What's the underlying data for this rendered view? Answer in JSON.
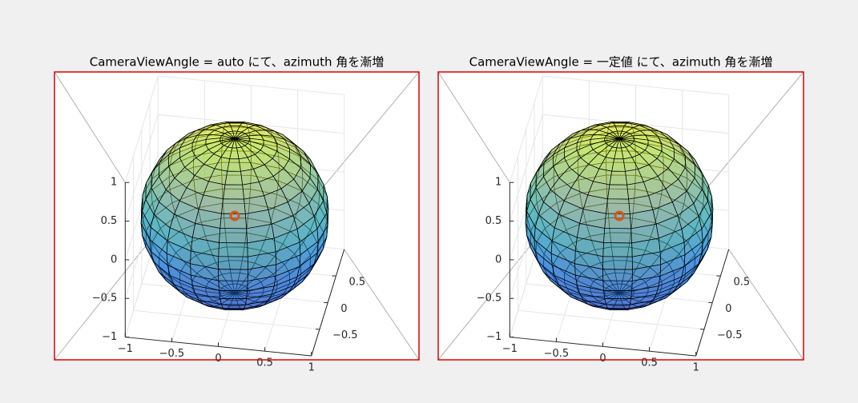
{
  "chart_data": [
    {
      "type": "surface3d",
      "title": "CameraViewAngle = auto にて、azimuth 角を漸増",
      "xlim": [
        -1,
        1
      ],
      "ylim": [
        -1,
        1
      ],
      "zlim": [
        -1,
        1
      ],
      "xticks": [
        {
          "value": -1,
          "label": "−1"
        },
        {
          "value": -0.5,
          "label": "−0.5"
        },
        0,
        0.5,
        1
      ],
      "yticks": [
        {
          "value": -0.5,
          "label": "−0.5"
        },
        0,
        0.5
      ],
      "zticks": [
        {
          "value": -1,
          "label": "−1"
        },
        {
          "value": -0.5,
          "label": "−0.5"
        },
        0,
        0.5,
        1
      ],
      "grid": true,
      "border_color": "#e00000",
      "points": [
        {
          "x": 0,
          "y": 0,
          "z": 0,
          "color": "#d95319"
        }
      ]
    },
    {
      "type": "surface3d",
      "title": "CameraViewAngle = 一定値 にて、azimuth 角を漸増",
      "xlim": [
        -1,
        1
      ],
      "ylim": [
        -1,
        1
      ],
      "zlim": [
        -1,
        1
      ],
      "xticks": [
        {
          "value": -1,
          "label": "−1"
        },
        {
          "value": -0.5,
          "label": "−0.5"
        },
        0,
        0.5,
        1
      ],
      "yticks": [
        {
          "value": -0.5,
          "label": "−0.5"
        },
        0,
        0.5
      ],
      "zticks": [
        {
          "value": -1,
          "label": "−1"
        },
        {
          "value": -0.5,
          "label": "−0.5"
        },
        0,
        0.5,
        1
      ],
      "grid": true,
      "border_color": "#e00000",
      "points": [
        {
          "x": 0,
          "y": 0,
          "z": 0,
          "color": "#d95319"
        }
      ]
    }
  ]
}
